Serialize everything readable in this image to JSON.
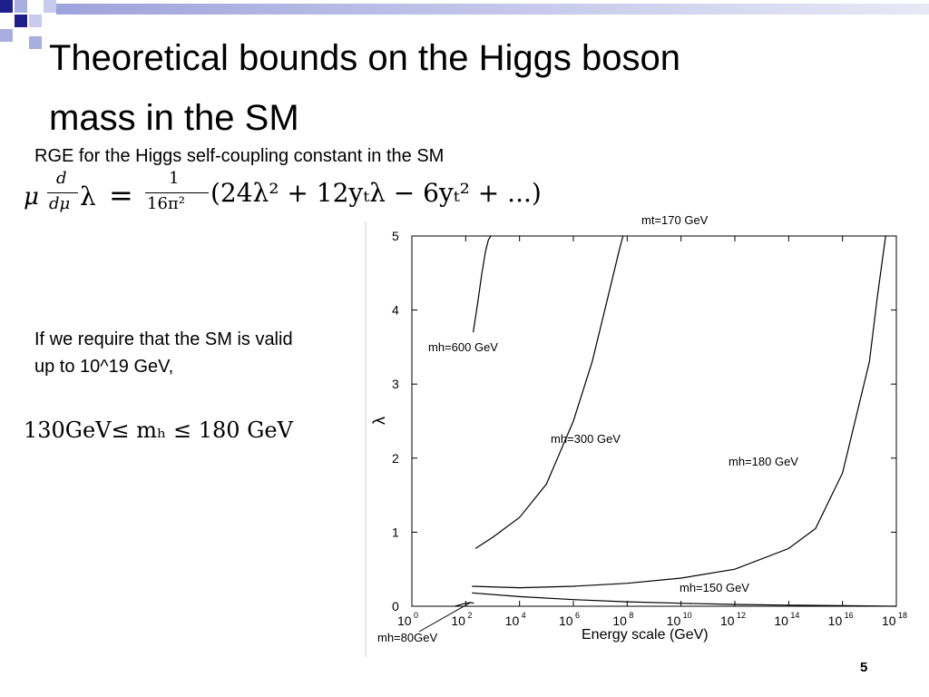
{
  "slide": {
    "title_line1": "Theoretical bounds on the Higgs boson",
    "title_line2": "mass in the SM",
    "rge_label": "RGE for the Higgs self-coupling constant in the SM",
    "rge_equation": {
      "mu": "μ",
      "d": "d",
      "dmu": "dμ",
      "lambda": "λ",
      "equals": "=",
      "frac_num": "1",
      "frac_den": "16π²",
      "rhs": "(24λ² + 12yₜλ − 6yₜ² + ...)"
    },
    "condition_line1": "If we require that the SM  is valid",
    "condition_line2": "up to 10^19 GeV,",
    "bound_text": "130GeV≤ mₕ ≤ 180  GeV",
    "slide_number": "5"
  },
  "chart_data": {
    "type": "line",
    "annotation_top": "mt=170 GeV",
    "xlabel": "Energy scale (GeV)",
    "ylabel": "λ",
    "x_scale": "log10",
    "xlim": [
      1,
      1e+18
    ],
    "ylim": [
      0,
      5
    ],
    "x_ticks": [
      {
        "base": "10",
        "exp": "0",
        "value": 1
      },
      {
        "base": "10",
        "exp": "2",
        "value": 100
      },
      {
        "base": "10",
        "exp": "4",
        "value": 10000
      },
      {
        "base": "10",
        "exp": "6",
        "value": 1000000
      },
      {
        "base": "10",
        "exp": "8",
        "value": 100000000
      },
      {
        "base": "10",
        "exp": "10",
        "value": 10000000000
      },
      {
        "base": "10",
        "exp": "12",
        "value": 1000000000000
      },
      {
        "base": "10",
        "exp": "14",
        "value": 100000000000000
      },
      {
        "base": "10",
        "exp": "16",
        "value": 10000000000000000
      },
      {
        "base": "10",
        "exp": "18",
        "value": 1000000000000000000
      }
    ],
    "y_ticks": [
      "0",
      "1",
      "2",
      "3",
      "4",
      "5"
    ],
    "grid": false,
    "series": [
      {
        "name": "mh=600 GeV",
        "x": [
          190,
          280,
          400,
          550,
          700,
          860
        ],
        "y": [
          3.7,
          4.1,
          4.5,
          4.8,
          4.95,
          5.0
        ]
      },
      {
        "name": "mh=300 GeV",
        "x": [
          230,
          1000,
          10000,
          100000,
          1000000,
          5000000,
          20000000,
          50000000,
          70000000
        ],
        "y": [
          0.78,
          0.93,
          1.2,
          1.65,
          2.5,
          3.3,
          4.2,
          4.8,
          5.0
        ]
      },
      {
        "name": "mh=180 GeV",
        "x": [
          170,
          10000,
          1000000,
          100000000,
          10000000000,
          1000000000000,
          100000000000000,
          1000000000000000,
          10000000000000000,
          100000000000000000,
          200000000000000000,
          400000000000000000
        ],
        "y": [
          0.27,
          0.25,
          0.27,
          0.31,
          0.38,
          0.5,
          0.78,
          1.05,
          1.8,
          3.3,
          4.2,
          5.0
        ]
      },
      {
        "name": "mh=150 GeV",
        "x": [
          170,
          10000,
          1000000,
          100000000,
          10000000000,
          1000000000000,
          100000000000000,
          10000000000000000,
          1000000000000000000
        ],
        "y": [
          0.18,
          0.13,
          0.09,
          0.06,
          0.04,
          0.025,
          0.015,
          0.008,
          0.0
        ]
      },
      {
        "name": "mh=80GeV",
        "x": [
          40,
          100,
          150,
          200
        ],
        "y": [
          0.0,
          0.04,
          0.05,
          0.04
        ]
      }
    ],
    "label_color": "#000000"
  },
  "theme": {
    "deco_blue": "#1f1f8c",
    "deco_light": "#a9aee0",
    "title_bar": "#b8bce6"
  }
}
